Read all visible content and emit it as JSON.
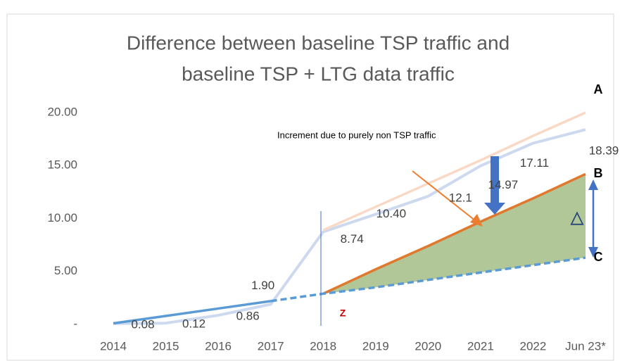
{
  "chart_data": {
    "type": "line",
    "title": [
      "Difference between baseline TSP traffic and",
      "baseline TSP + LTG data traffic"
    ],
    "categories": [
      "2014",
      "2015",
      "2016",
      "2017",
      "2018",
      "2019",
      "2020",
      "2021",
      "2022",
      "Jun 23*"
    ],
    "ylim": [
      0,
      20
    ],
    "yticks": [
      {
        "value": 0,
        "label": "-"
      },
      {
        "value": 5,
        "label": "5.00"
      },
      {
        "value": 10,
        "label": "10.00"
      },
      {
        "value": 15,
        "label": "15.00"
      },
      {
        "value": 20,
        "label": "20.00"
      }
    ],
    "series": [
      {
        "color": "#cdd9ef",
        "values": [
          0.08,
          0.12,
          0.86,
          1.9,
          8.74,
          10.4,
          12.1,
          14.97,
          17.11,
          18.39
        ],
        "value_labels": [
          "0.08",
          "0.12",
          "0.86",
          "1.90",
          "8.74",
          "10.40",
          "12.1",
          "14.97",
          "17.11",
          "18.39"
        ]
      },
      {
        "name": "A",
        "color": "#f9d9c6",
        "values": [
          null,
          null,
          null,
          null,
          8.9,
          11.1,
          13.3,
          15.5,
          17.8,
          20.0
        ]
      },
      {
        "name": "B",
        "color": "#e0782e",
        "values": [
          null,
          null,
          null,
          null,
          2.9,
          5.2,
          7.4,
          9.7,
          11.9,
          14.2
        ]
      },
      {
        "name": "C",
        "color": "#5b9bd5",
        "dashed_from": 3,
        "values": [
          0.1,
          0.8,
          1.5,
          2.2,
          2.9,
          3.5,
          4.2,
          4.9,
          5.6,
          6.3
        ]
      }
    ],
    "fill_between": {
      "series": [
        2,
        3
      ],
      "color": "#a3bd86"
    },
    "annotations": {
      "increment": "Increment due to purely non TSP traffic",
      "z": "Z",
      "delta": "△"
    }
  }
}
